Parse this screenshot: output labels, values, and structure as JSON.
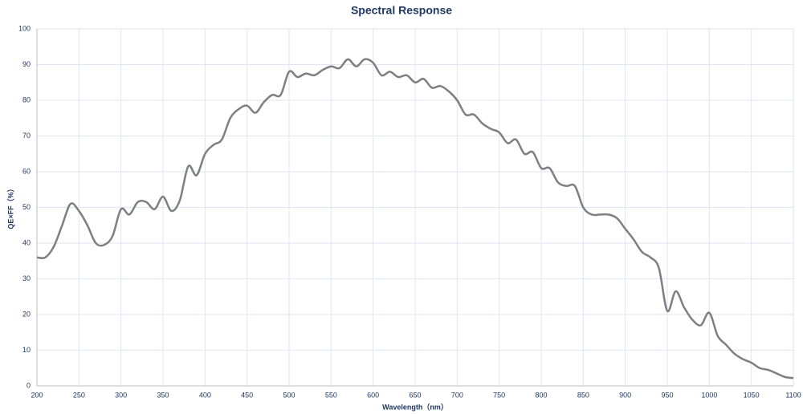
{
  "chart_data": {
    "type": "line",
    "title": "Spectral Response",
    "x_label": "Wavelength（nm）",
    "y_label": "QE×FF（%）",
    "x": [
      200,
      210,
      220,
      230,
      240,
      250,
      260,
      270,
      280,
      290,
      300,
      310,
      320,
      330,
      340,
      350,
      360,
      370,
      380,
      390,
      400,
      410,
      420,
      430,
      440,
      450,
      460,
      470,
      480,
      490,
      500,
      510,
      520,
      530,
      540,
      550,
      560,
      570,
      580,
      590,
      600,
      610,
      620,
      630,
      640,
      650,
      660,
      670,
      680,
      690,
      700,
      710,
      720,
      730,
      740,
      750,
      760,
      770,
      780,
      790,
      800,
      810,
      820,
      830,
      840,
      850,
      860,
      870,
      880,
      890,
      900,
      910,
      920,
      930,
      940,
      950,
      960,
      970,
      980,
      990,
      1000,
      1010,
      1020,
      1030,
      1040,
      1050,
      1060,
      1070,
      1080,
      1090,
      1100
    ],
    "series": [
      {
        "name": "QE×FF",
        "color": "#7f7f7f",
        "values": [
          36,
          36,
          39,
          45,
          51,
          49,
          45,
          40,
          39.5,
          42,
          49.5,
          48,
          51.5,
          51.5,
          49.5,
          53,
          49,
          52,
          61.5,
          59,
          65,
          67.5,
          69,
          75,
          77.5,
          78.5,
          76.5,
          79.5,
          81.5,
          81.5,
          88,
          86.5,
          87.5,
          87,
          88.5,
          89.5,
          89,
          91.5,
          89.5,
          91.5,
          90.5,
          87,
          88,
          86.5,
          87,
          85,
          86,
          83.5,
          84,
          82.5,
          80,
          76,
          76,
          73.5,
          72,
          71,
          68,
          69,
          65,
          65.5,
          61,
          61,
          57,
          56,
          56,
          50,
          48,
          48,
          48,
          47,
          44,
          41,
          37.5,
          36,
          33,
          21,
          26.5,
          22,
          18.5,
          17,
          20.5,
          14,
          11.5,
          9,
          7.5,
          6.5,
          5,
          4.5,
          3.5,
          2.5,
          2.2
        ]
      }
    ],
    "xlim": [
      200,
      1100
    ],
    "xticks": [
      200,
      250,
      300,
      350,
      400,
      450,
      500,
      550,
      600,
      650,
      700,
      750,
      800,
      850,
      900,
      950,
      1000,
      1050,
      1100
    ],
    "ylim": [
      0,
      100
    ],
    "yticks": [
      0,
      10,
      20,
      30,
      40,
      50,
      60,
      70,
      80,
      90,
      100
    ],
    "grid": true
  }
}
